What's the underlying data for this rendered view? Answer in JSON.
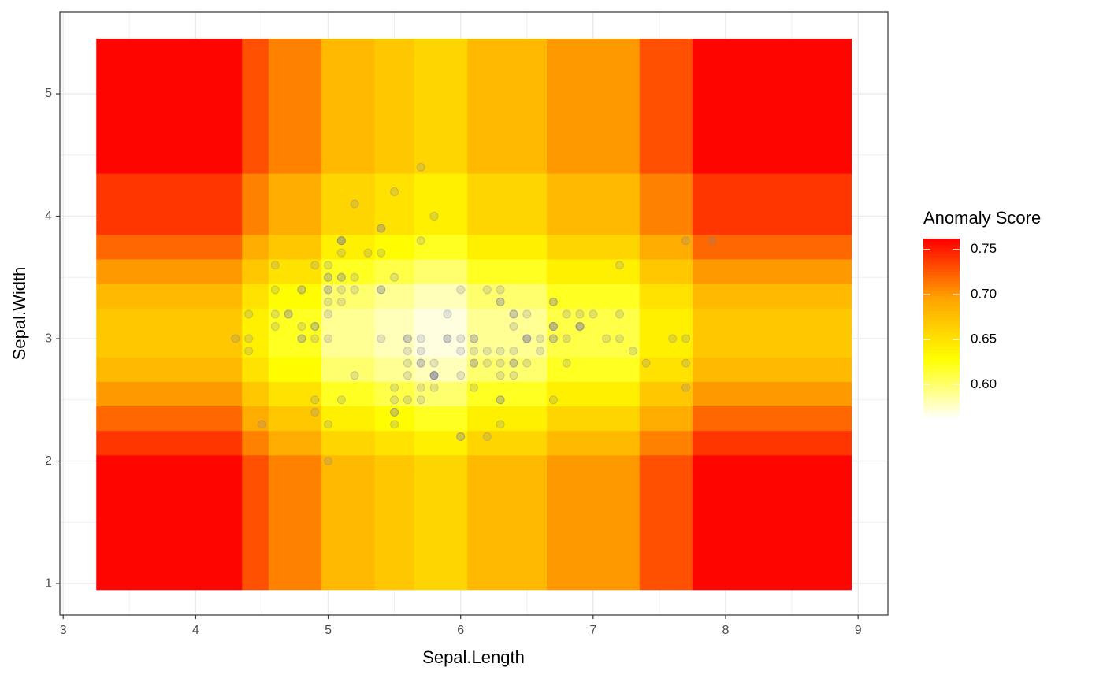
{
  "chart_data": {
    "type": "heatmap",
    "x_label": "Sepal.Length",
    "y_label": "Sepal.Width",
    "legend_title": "Anomaly Score",
    "xlim": [
      2.975,
      9.225
    ],
    "ylim": [
      0.743,
      5.669
    ],
    "xticks": [
      3,
      4,
      5,
      6,
      7,
      8,
      9
    ],
    "yticks": [
      1,
      2,
      3,
      4,
      5
    ],
    "grid": true,
    "x_edges": [
      3.25,
      4.35,
      4.55,
      4.95,
      5.35,
      5.65,
      6.05,
      6.65,
      7.35,
      7.75,
      8.95
    ],
    "y_edges": [
      0.95,
      2.05,
      2.25,
      2.45,
      2.65,
      2.85,
      3.05,
      3.25,
      3.45,
      3.65,
      3.85,
      4.35,
      5.45
    ],
    "z": [
      [
        0.76,
        0.73,
        0.71,
        0.68,
        0.67,
        0.66,
        0.68,
        0.7,
        0.73,
        0.76
      ],
      [
        0.74,
        0.71,
        0.69,
        0.66,
        0.65,
        0.64,
        0.66,
        0.68,
        0.71,
        0.74
      ],
      [
        0.72,
        0.69,
        0.67,
        0.64,
        0.63,
        0.62,
        0.64,
        0.66,
        0.69,
        0.72
      ],
      [
        0.7,
        0.67,
        0.65,
        0.62,
        0.61,
        0.6,
        0.62,
        0.64,
        0.67,
        0.7
      ],
      [
        0.68,
        0.65,
        0.63,
        0.6,
        0.59,
        0.58,
        0.6,
        0.62,
        0.65,
        0.68
      ],
      [
        0.67,
        0.64,
        0.62,
        0.59,
        0.58,
        0.57,
        0.59,
        0.61,
        0.64,
        0.67
      ],
      [
        0.67,
        0.64,
        0.62,
        0.59,
        0.58,
        0.57,
        0.59,
        0.61,
        0.64,
        0.67
      ],
      [
        0.68,
        0.65,
        0.63,
        0.6,
        0.59,
        0.58,
        0.6,
        0.62,
        0.65,
        0.68
      ],
      [
        0.7,
        0.67,
        0.65,
        0.62,
        0.61,
        0.6,
        0.62,
        0.64,
        0.67,
        0.7
      ],
      [
        0.72,
        0.69,
        0.67,
        0.64,
        0.63,
        0.62,
        0.64,
        0.66,
        0.69,
        0.72
      ],
      [
        0.74,
        0.71,
        0.69,
        0.66,
        0.65,
        0.64,
        0.66,
        0.68,
        0.71,
        0.74
      ],
      [
        0.76,
        0.73,
        0.71,
        0.68,
        0.67,
        0.66,
        0.68,
        0.7,
        0.73,
        0.76
      ]
    ],
    "zlim": [
      0.562,
      0.762
    ],
    "zticks": [
      {
        "value": 0.6,
        "label": "0.60"
      },
      0.65,
      {
        "value": 0.7,
        "label": "0.70"
      },
      0.75
    ],
    "colorscale": [
      "#ffffff",
      "#ffff00",
      "#ffa500",
      "#ff0000"
    ],
    "point_color": "#7f7f9f",
    "points": {
      "x": [
        5.1,
        4.9,
        4.7,
        4.6,
        5.0,
        5.4,
        4.6,
        5.0,
        4.4,
        4.9,
        5.4,
        4.8,
        4.8,
        4.3,
        5.8,
        5.7,
        5.4,
        5.1,
        5.7,
        5.1,
        5.4,
        5.1,
        4.6,
        5.1,
        4.8,
        5.0,
        5.0,
        5.2,
        5.2,
        4.7,
        4.8,
        5.4,
        5.2,
        5.5,
        4.9,
        5.0,
        5.5,
        4.9,
        4.4,
        5.1,
        5.0,
        4.5,
        4.4,
        5.0,
        5.1,
        4.8,
        5.1,
        4.6,
        5.3,
        5.0,
        7.0,
        6.4,
        6.9,
        5.5,
        6.5,
        5.7,
        6.3,
        4.9,
        6.6,
        5.2,
        5.0,
        5.9,
        6.0,
        6.1,
        5.6,
        6.7,
        5.6,
        5.8,
        6.2,
        5.6,
        5.9,
        6.1,
        6.3,
        6.1,
        6.4,
        6.6,
        6.8,
        6.7,
        6.0,
        5.7,
        5.5,
        5.5,
        5.8,
        6.0,
        5.4,
        6.0,
        6.7,
        6.3,
        5.6,
        5.5,
        5.5,
        6.1,
        5.8,
        5.0,
        5.6,
        5.7,
        5.7,
        6.2,
        5.1,
        5.7,
        6.3,
        5.8,
        7.1,
        6.3,
        6.5,
        7.6,
        4.9,
        7.3,
        6.7,
        7.2,
        6.5,
        6.4,
        6.8,
        5.7,
        5.8,
        6.4,
        6.5,
        7.7,
        7.7,
        6.0,
        6.9,
        5.6,
        7.7,
        6.3,
        6.7,
        7.2,
        6.2,
        6.1,
        6.4,
        7.2,
        7.4,
        7.9,
        6.4,
        6.3,
        6.1,
        7.7,
        6.3,
        6.4,
        6.0,
        6.9,
        6.7,
        6.9,
        5.8,
        6.8,
        6.7,
        6.7,
        6.3,
        6.5,
        6.2,
        5.9
      ],
      "y": [
        3.5,
        3.0,
        3.2,
        3.1,
        3.6,
        3.9,
        3.4,
        3.4,
        2.9,
        3.1,
        3.7,
        3.4,
        3.0,
        3.0,
        4.0,
        4.4,
        3.9,
        3.5,
        3.8,
        3.8,
        3.4,
        3.7,
        3.6,
        3.3,
        3.4,
        3.0,
        3.4,
        3.5,
        3.4,
        3.2,
        3.1,
        3.4,
        4.1,
        4.2,
        3.1,
        3.2,
        3.5,
        3.6,
        3.0,
        3.4,
        3.5,
        2.3,
        3.2,
        3.5,
        3.8,
        3.0,
        3.8,
        3.2,
        3.7,
        3.3,
        3.2,
        3.2,
        3.1,
        2.3,
        2.8,
        2.8,
        3.3,
        2.4,
        2.9,
        2.7,
        2.0,
        3.0,
        2.2,
        2.9,
        2.9,
        3.1,
        3.0,
        2.7,
        2.2,
        2.5,
        3.2,
        2.8,
        2.5,
        2.8,
        2.9,
        3.0,
        2.8,
        3.0,
        2.9,
        2.6,
        2.4,
        2.4,
        2.7,
        2.7,
        3.0,
        3.4,
        3.1,
        2.3,
        3.0,
        2.5,
        2.6,
        3.0,
        2.6,
        2.3,
        2.7,
        3.0,
        2.9,
        2.9,
        2.5,
        2.8,
        3.3,
        2.7,
        3.0,
        2.9,
        3.0,
        3.0,
        2.5,
        2.9,
        2.5,
        3.6,
        3.2,
        2.7,
        3.0,
        2.5,
        2.8,
        3.2,
        3.0,
        3.8,
        2.6,
        2.2,
        3.2,
        2.8,
        2.8,
        2.7,
        3.3,
        3.2,
        2.8,
        3.0,
        2.8,
        3.0,
        2.8,
        3.8,
        2.8,
        2.8,
        2.6,
        3.0,
        3.4,
        3.1,
        3.0,
        3.1,
        3.1,
        3.1,
        2.7,
        3.2,
        3.3,
        3.0,
        2.5,
        3.0,
        3.4,
        3.0
      ]
    }
  }
}
